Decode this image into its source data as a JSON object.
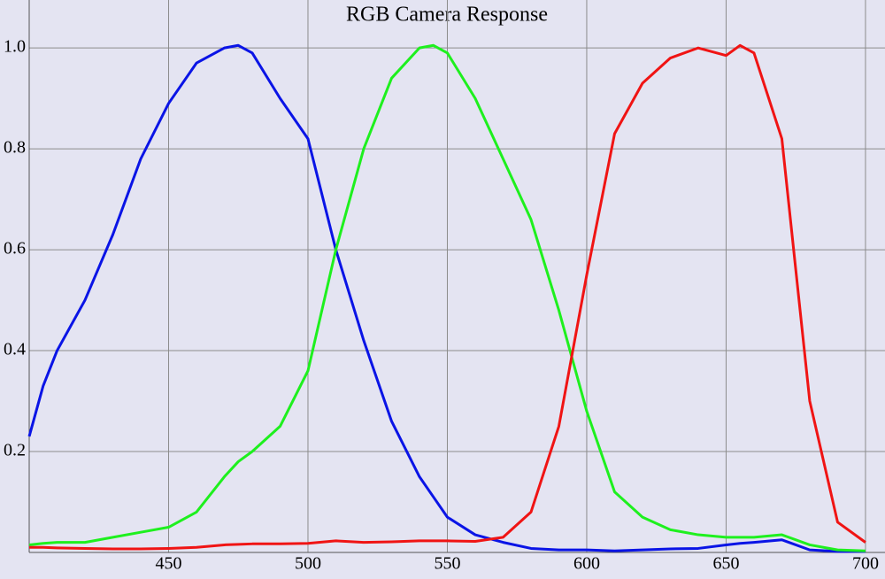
{
  "chart_data": {
    "type": "line",
    "title": "RGB Camera Response",
    "x": [
      400,
      405,
      410,
      420,
      430,
      440,
      450,
      460,
      470,
      475,
      480,
      490,
      500,
      510,
      520,
      530,
      540,
      545,
      550,
      560,
      570,
      580,
      590,
      600,
      610,
      620,
      630,
      640,
      650,
      655,
      660,
      670,
      680,
      690,
      700
    ],
    "series": [
      {
        "name": "Blue",
        "color": "#0a14e6",
        "values": [
          0.23,
          0.33,
          0.4,
          0.5,
          0.63,
          0.78,
          0.89,
          0.97,
          1.0,
          1.005,
          0.99,
          0.9,
          0.82,
          0.6,
          0.42,
          0.26,
          0.15,
          0.11,
          0.07,
          0.035,
          0.02,
          0.008,
          0.005,
          0.005,
          0.003,
          0.005,
          0.007,
          0.008,
          0.015,
          0.018,
          0.02,
          0.025,
          0.005,
          0.002,
          0.002
        ]
      },
      {
        "name": "Green",
        "color": "#1ef01e",
        "values": [
          0.015,
          0.018,
          0.02,
          0.02,
          0.03,
          0.04,
          0.05,
          0.08,
          0.15,
          0.18,
          0.2,
          0.25,
          0.36,
          0.6,
          0.8,
          0.94,
          1.0,
          1.005,
          0.99,
          0.9,
          0.78,
          0.66,
          0.48,
          0.28,
          0.12,
          0.07,
          0.045,
          0.035,
          0.03,
          0.03,
          0.03,
          0.035,
          0.015,
          0.005,
          0.003
        ]
      },
      {
        "name": "Red",
        "color": "#f01414",
        "values": [
          0.01,
          0.01,
          0.009,
          0.008,
          0.007,
          0.007,
          0.008,
          0.01,
          0.015,
          0.016,
          0.017,
          0.017,
          0.018,
          0.023,
          0.02,
          0.021,
          0.023,
          0.023,
          0.023,
          0.022,
          0.03,
          0.08,
          0.25,
          0.55,
          0.83,
          0.93,
          0.98,
          1.0,
          0.985,
          1.005,
          0.99,
          0.82,
          0.3,
          0.06,
          0.02
        ]
      }
    ],
    "xlim": [
      400,
      707
    ],
    "ylim": [
      0,
      1.095
    ],
    "xticks": [
      450,
      500,
      550,
      600,
      650,
      700
    ],
    "yticks": [
      0.2,
      0.4,
      0.6,
      0.8,
      {
        "value": 1,
        "label": "1.0"
      }
    ],
    "grid": true
  }
}
